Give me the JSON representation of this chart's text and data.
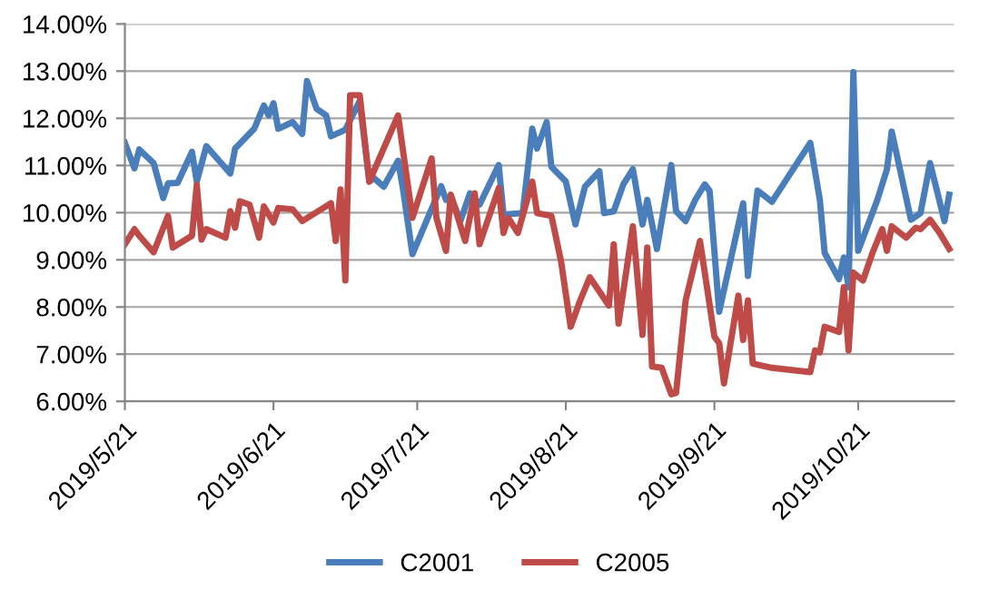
{
  "chart_data": {
    "type": "line",
    "xlim": [
      "2019-05-21",
      "2019-11-10"
    ],
    "xticks": [
      {
        "value": "2019-05-21",
        "label": "2019/5/21"
      },
      {
        "value": "2019-06-21",
        "label": "2019/6/21"
      },
      {
        "value": "2019-07-21",
        "label": "2019/7/21"
      },
      {
        "value": "2019-08-21",
        "label": "2019/8/21"
      },
      {
        "value": "2019-09-21",
        "label": "2019/9/21"
      },
      {
        "value": "2019-10-21",
        "label": "2019/10/21"
      }
    ],
    "ylim": [
      6,
      14
    ],
    "yticks": [
      {
        "value": 6,
        "label": "6.00%"
      },
      {
        "value": 7,
        "label": "7.00%"
      },
      {
        "value": 8,
        "label": "8.00%"
      },
      {
        "value": 9,
        "label": "9.00%"
      },
      {
        "value": 10,
        "label": "10.00%"
      },
      {
        "value": 11,
        "label": "11.00%"
      },
      {
        "value": 12,
        "label": "12.00%"
      },
      {
        "value": 13,
        "label": "13.00%"
      },
      {
        "value": 14,
        "label": "14.00%"
      }
    ],
    "grid": "y",
    "legend": "bottom",
    "marker": "none",
    "line_style": "solid",
    "series": [
      {
        "name": "C2001",
        "color": "#4a7ebb",
        "x": [
          "2019-05-21",
          "2019-05-23",
          "2019-05-24",
          "2019-05-27",
          "2019-05-29",
          "2019-05-30",
          "2019-06-01",
          "2019-06-04",
          "2019-06-05",
          "2019-06-07",
          "2019-06-12",
          "2019-06-13",
          "2019-06-17",
          "2019-06-19",
          "2019-06-20",
          "2019-06-21",
          "2019-06-22",
          "2019-06-25",
          "2019-06-27",
          "2019-06-28",
          "2019-06-30",
          "2019-07-02",
          "2019-07-03",
          "2019-07-05",
          "2019-07-06",
          "2019-07-09",
          "2019-07-11",
          "2019-07-12",
          "2019-07-14",
          "2019-07-17",
          "2019-07-18",
          "2019-07-20",
          "2019-07-26",
          "2019-07-27",
          "2019-07-28",
          "2019-07-30",
          "2019-08-01",
          "2019-08-03",
          "2019-08-07",
          "2019-08-08",
          "2019-08-12",
          "2019-08-14",
          "2019-08-15",
          "2019-08-17",
          "2019-08-18",
          "2019-08-21",
          "2019-08-23",
          "2019-08-25",
          "2019-08-28",
          "2019-08-29",
          "2019-08-31",
          "2019-09-02",
          "2019-09-04",
          "2019-09-06",
          "2019-09-07",
          "2019-09-09",
          "2019-09-12",
          "2019-09-13",
          "2019-09-15",
          "2019-09-17",
          "2019-09-19",
          "2019-09-20",
          "2019-09-22",
          "2019-09-27",
          "2019-09-28",
          "2019-09-30",
          "2019-10-03",
          "2019-10-11",
          "2019-10-13",
          "2019-10-14",
          "2019-10-17",
          "2019-10-18",
          "2019-10-19",
          "2019-10-20",
          "2019-10-21",
          "2019-10-25",
          "2019-10-27",
          "2019-10-28",
          "2019-11-01",
          "2019-11-03",
          "2019-11-05",
          "2019-11-08",
          "2019-11-09"
        ],
        "values": [
          11.48,
          10.94,
          11.34,
          11.05,
          10.31,
          10.62,
          10.63,
          11.29,
          10.66,
          11.41,
          10.83,
          11.36,
          11.78,
          12.27,
          12.06,
          12.32,
          11.78,
          11.92,
          11.67,
          12.79,
          12.2,
          12.06,
          11.62,
          11.71,
          11.76,
          12.37,
          10.66,
          10.73,
          10.55,
          11.1,
          10.52,
          9.12,
          10.56,
          10.27,
          10.35,
          9.82,
          10.41,
          10.17,
          11.01,
          9.96,
          9.99,
          11.78,
          11.36,
          11.92,
          10.97,
          10.66,
          9.75,
          10.55,
          10.88,
          9.99,
          10.03,
          10.6,
          10.92,
          9.75,
          10.27,
          9.23,
          11.01,
          10.03,
          9.82,
          10.27,
          10.6,
          10.46,
          7.9,
          10.2,
          8.66,
          10.47,
          10.23,
          11.48,
          10.27,
          9.15,
          8.59,
          9.05,
          8.42,
          12.98,
          9.19,
          10.27,
          10.92,
          11.72,
          9.85,
          9.99,
          11.05,
          9.82,
          10.38
        ]
      },
      {
        "name": "C2005",
        "color": "#be4b48",
        "x": [
          "2019-05-21",
          "2019-05-23",
          "2019-05-24",
          "2019-05-27",
          "2019-05-30",
          "2019-05-31",
          "2019-06-04",
          "2019-06-05",
          "2019-06-06",
          "2019-06-07",
          "2019-06-11",
          "2019-06-12",
          "2019-06-13",
          "2019-06-14",
          "2019-06-16",
          "2019-06-18",
          "2019-06-19",
          "2019-06-21",
          "2019-06-22",
          "2019-06-25",
          "2019-06-27",
          "2019-07-03",
          "2019-07-04",
          "2019-07-05",
          "2019-07-06",
          "2019-07-07",
          "2019-07-09",
          "2019-07-11",
          "2019-07-17",
          "2019-07-20",
          "2019-07-24",
          "2019-07-25",
          "2019-07-27",
          "2019-07-28",
          "2019-07-31",
          "2019-08-02",
          "2019-08-03",
          "2019-08-07",
          "2019-08-08",
          "2019-08-09",
          "2019-08-11",
          "2019-08-14",
          "2019-08-15",
          "2019-08-18",
          "2019-08-20",
          "2019-08-22",
          "2019-08-24",
          "2019-08-26",
          "2019-08-30",
          "2019-08-31",
          "2019-09-01",
          "2019-09-04",
          "2019-09-06",
          "2019-09-07",
          "2019-09-08",
          "2019-09-10",
          "2019-09-12",
          "2019-09-13",
          "2019-09-15",
          "2019-09-18",
          "2019-09-21",
          "2019-09-22",
          "2019-09-23",
          "2019-09-26",
          "2019-09-27",
          "2019-09-28",
          "2019-09-29",
          "2019-10-03",
          "2019-10-11",
          "2019-10-12",
          "2019-10-13",
          "2019-10-14",
          "2019-10-17",
          "2019-10-18",
          "2019-10-19",
          "2019-10-20",
          "2019-10-22",
          "2019-10-24",
          "2019-10-26",
          "2019-10-27",
          "2019-10-28",
          "2019-10-31",
          "2019-11-02",
          "2019-11-03",
          "2019-11-05",
          "2019-11-07",
          "2019-11-09"
        ],
        "values": [
          9.33,
          9.65,
          9.51,
          9.16,
          9.93,
          9.26,
          9.51,
          10.59,
          9.43,
          9.65,
          9.47,
          10.03,
          9.68,
          10.24,
          10.17,
          9.47,
          10.13,
          9.79,
          10.1,
          10.07,
          9.82,
          10.2,
          9.4,
          10.49,
          8.56,
          12.49,
          12.49,
          10.66,
          12.06,
          9.89,
          11.15,
          9.89,
          9.19,
          10.38,
          9.4,
          10.41,
          9.33,
          10.52,
          9.57,
          9.89,
          9.57,
          10.66,
          9.99,
          9.93,
          8.97,
          7.58,
          8.14,
          8.63,
          8.03,
          9.33,
          7.65,
          9.71,
          7.41,
          9.26,
          6.74,
          6.71,
          6.15,
          6.18,
          8.14,
          9.4,
          7.37,
          7.23,
          6.38,
          8.24,
          7.3,
          8.14,
          6.8,
          6.71,
          6.62,
          7.08,
          7.04,
          7.58,
          7.47,
          8.42,
          7.08,
          8.73,
          8.56,
          9.15,
          9.65,
          9.19,
          9.71,
          9.47,
          9.68,
          9.65,
          9.85,
          9.57,
          9.23
        ]
      }
    ]
  }
}
